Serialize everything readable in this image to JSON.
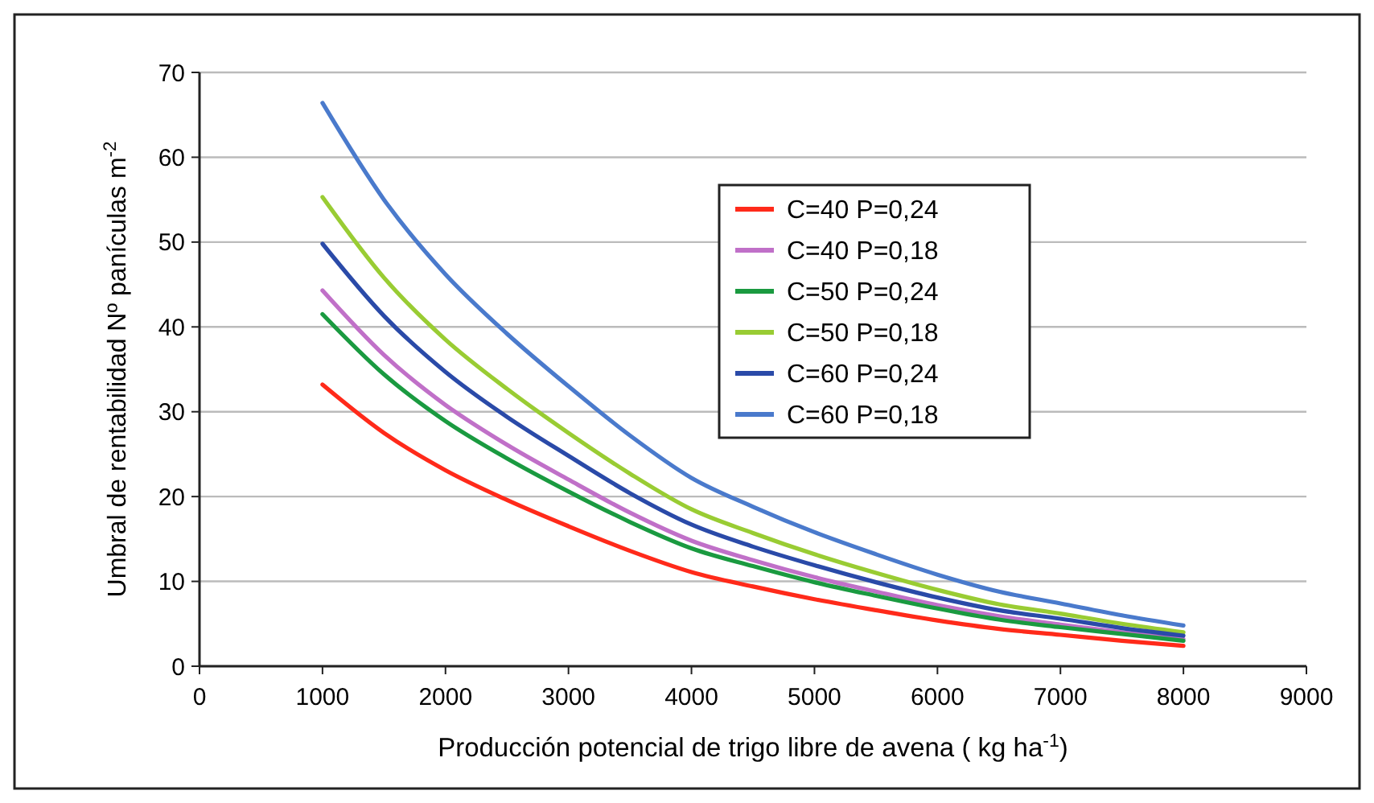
{
  "chart_data": {
    "type": "line",
    "xlabel": "Producción potencial de trigo libre de avena ( kg ha$^{-1}$)",
    "ylabel": "Umbral de rentabilidad Nº panículas m$^{-2}$",
    "x": [
      1000,
      1500,
      2000,
      2500,
      3000,
      3500,
      4000,
      4500,
      5000,
      5500,
      6000,
      6500,
      7000,
      7500,
      8000
    ],
    "series": [
      {
        "name": "C=40 P=0,24",
        "color": "#ff2a1a",
        "values": [
          33.2,
          27.5,
          23.1,
          19.6,
          16.5,
          13.6,
          11.1,
          9.4,
          7.9,
          6.6,
          5.4,
          4.4,
          3.7,
          3.0,
          2.4
        ]
      },
      {
        "name": "C=40 P=0,18",
        "color": "#c070c8",
        "values": [
          44.3,
          36.7,
          30.8,
          26.1,
          22.0,
          18.1,
          14.8,
          12.5,
          10.5,
          8.8,
          7.2,
          5.9,
          4.9,
          4.0,
          3.2
        ]
      },
      {
        "name": "C=50 P=0,24",
        "color": "#1a9a40",
        "values": [
          41.5,
          34.4,
          28.9,
          24.5,
          20.6,
          17.0,
          13.9,
          11.8,
          9.9,
          8.3,
          6.8,
          5.5,
          4.6,
          3.8,
          3.0
        ]
      },
      {
        "name": "C=50 P=0,18",
        "color": "#99cc33",
        "values": [
          55.3,
          45.8,
          38.5,
          32.7,
          27.5,
          22.7,
          18.5,
          15.7,
          13.2,
          11.0,
          9.0,
          7.3,
          6.2,
          5.0,
          4.0
        ]
      },
      {
        "name": "C=60 P=0,24",
        "color": "#2a4aa8",
        "values": [
          49.8,
          41.3,
          34.7,
          29.4,
          24.8,
          20.4,
          16.7,
          14.1,
          11.9,
          9.9,
          8.1,
          6.6,
          5.6,
          4.5,
          3.6
        ]
      },
      {
        "name": "C=60 P=0,18",
        "color": "#4a7acc",
        "values": [
          66.4,
          55.0,
          46.2,
          39.2,
          33.0,
          27.2,
          22.2,
          18.8,
          15.8,
          13.2,
          10.8,
          8.8,
          7.4,
          6.0,
          4.8
        ]
      }
    ],
    "xlim": [
      0,
      9000
    ],
    "xticks": [
      0,
      1000,
      2000,
      3000,
      4000,
      5000,
      6000,
      7000,
      8000,
      9000
    ],
    "ylim": [
      0,
      70
    ],
    "yticks": [
      0,
      10,
      20,
      30,
      40,
      50,
      60,
      70
    ],
    "grid": "y",
    "legend": "top right",
    "marker": "none",
    "line_style": "solid"
  }
}
